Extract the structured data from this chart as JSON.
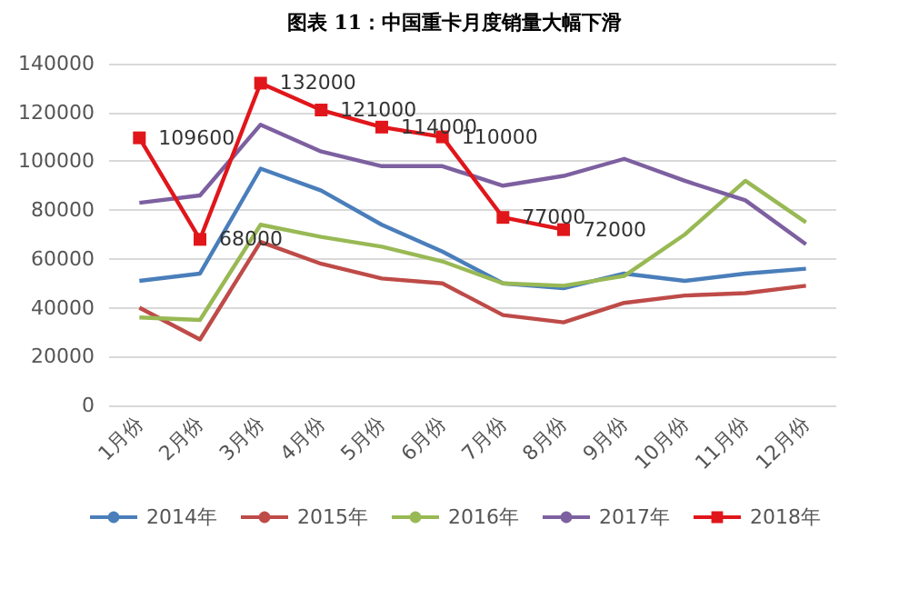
{
  "chart_data": {
    "type": "line",
    "title": "图表 11：中国重卡月度销量大幅下滑",
    "categories": [
      "1月份",
      "2月份",
      "3月份",
      "4月份",
      "5月份",
      "6月份",
      "7月份",
      "8月份",
      "9月份",
      "10月份",
      "11月份",
      "12月份"
    ],
    "series": [
      {
        "name": "2014年",
        "color": "#4a7ebb",
        "marker": "none",
        "values": [
          51000,
          54000,
          97000,
          88000,
          74000,
          63000,
          50000,
          48000,
          54000,
          51000,
          54000,
          56000
        ]
      },
      {
        "name": "2015年",
        "color": "#be4b48",
        "marker": "none",
        "values": [
          40000,
          27000,
          67000,
          58000,
          52000,
          50000,
          37000,
          34000,
          42000,
          45000,
          46000,
          49000
        ]
      },
      {
        "name": "2016年",
        "color": "#98b954",
        "marker": "none",
        "values": [
          36000,
          35000,
          74000,
          69000,
          65000,
          59000,
          50000,
          49000,
          53000,
          70000,
          92000,
          75000
        ]
      },
      {
        "name": "2017年",
        "color": "#7d60a0",
        "marker": "none",
        "values": [
          83000,
          86000,
          115000,
          104000,
          98000,
          98000,
          90000,
          94000,
          101000,
          92000,
          84000,
          66000
        ]
      },
      {
        "name": "2018年",
        "color": "#e0161b",
        "marker": "square",
        "data_labels": true,
        "values": [
          109600,
          68000,
          132000,
          121000,
          114000,
          110000,
          77000,
          72000,
          null,
          null,
          null,
          null
        ]
      }
    ],
    "ylim": [
      0,
      140000
    ],
    "yticks": [
      0,
      20000,
      40000,
      60000,
      80000,
      100000,
      120000,
      140000
    ],
    "grid": "y",
    "legend": "bottom"
  }
}
